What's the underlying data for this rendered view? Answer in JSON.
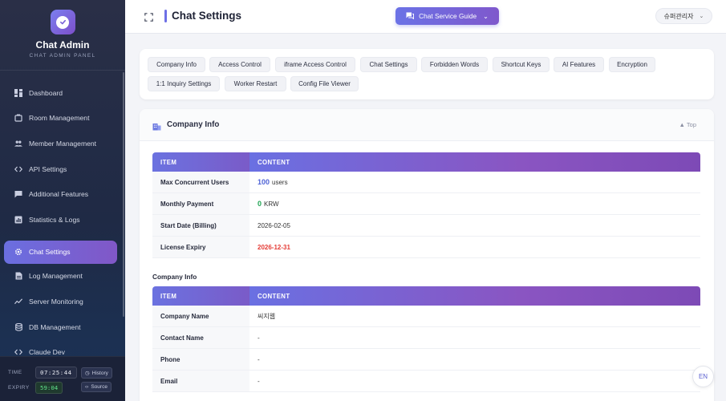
{
  "brand": {
    "title": "Chat Admin",
    "subtitle": "CHAT ADMIN PANEL"
  },
  "sidebar": {
    "items": [
      {
        "label": "Dashboard",
        "icon": "dashboard-icon"
      },
      {
        "label": "Room Management",
        "icon": "room-icon"
      },
      {
        "label": "Member Management",
        "icon": "members-icon"
      },
      {
        "label": "API Settings",
        "icon": "code-icon"
      },
      {
        "label": "Additional Features",
        "icon": "chat-bubble-icon"
      },
      {
        "label": "Statistics & Logs",
        "icon": "chart-icon"
      },
      {
        "label": "Chat Settings",
        "icon": "gear-icon",
        "active": true
      },
      {
        "label": "Log Management",
        "icon": "document-icon"
      },
      {
        "label": "Server Monitoring",
        "icon": "line-chart-icon"
      },
      {
        "label": "DB Management",
        "icon": "database-icon"
      },
      {
        "label": "Claude Dev",
        "icon": "code-icon"
      }
    ],
    "footer": {
      "time_label": "TIME",
      "time_value": "07:25:44",
      "history_label": "History",
      "expiry_label": "EXPIRY",
      "expiry_value": "59:04",
      "source_label": "Source"
    }
  },
  "header": {
    "title": "Chat Settings",
    "guide_label": "Chat Service Guide",
    "user_label": "슈퍼관리자"
  },
  "tabs": [
    "Company Info",
    "Access Control",
    "iframe Access Control",
    "Chat Settings",
    "Forbidden Words",
    "Shortcut Keys",
    "AI Features",
    "Encryption",
    "1:1 Inquiry Settings",
    "Worker Restart",
    "Config File Viewer"
  ],
  "section": {
    "title": "Company Info",
    "top_link": "▲ Top",
    "table1": {
      "headers": [
        "ITEM",
        "CONTENT"
      ],
      "rows": [
        {
          "item": "Max Concurrent Users",
          "value": "100",
          "unit": "users"
        },
        {
          "item": "Monthly Payment",
          "value": "0",
          "unit": "KRW"
        },
        {
          "item": "Start Date (Billing)",
          "value": "2026-02-05"
        },
        {
          "item": "License Expiry",
          "value": "2026-12-31"
        }
      ]
    },
    "subsection_title": "Company Info",
    "table2": {
      "headers": [
        "ITEM",
        "CONTENT"
      ],
      "rows": [
        {
          "item": "Company Name",
          "value": "씨지웹"
        },
        {
          "item": "Contact Name",
          "value": "-"
        },
        {
          "item": "Phone",
          "value": "-"
        },
        {
          "item": "Email",
          "value": "-"
        }
      ]
    }
  },
  "lang_button": "EN",
  "colors": {
    "accent": "#6b72e6",
    "accent2": "#7f58cc",
    "sidebar": "#2a2f47",
    "success": "#1fa453",
    "danger": "#e53b35"
  }
}
